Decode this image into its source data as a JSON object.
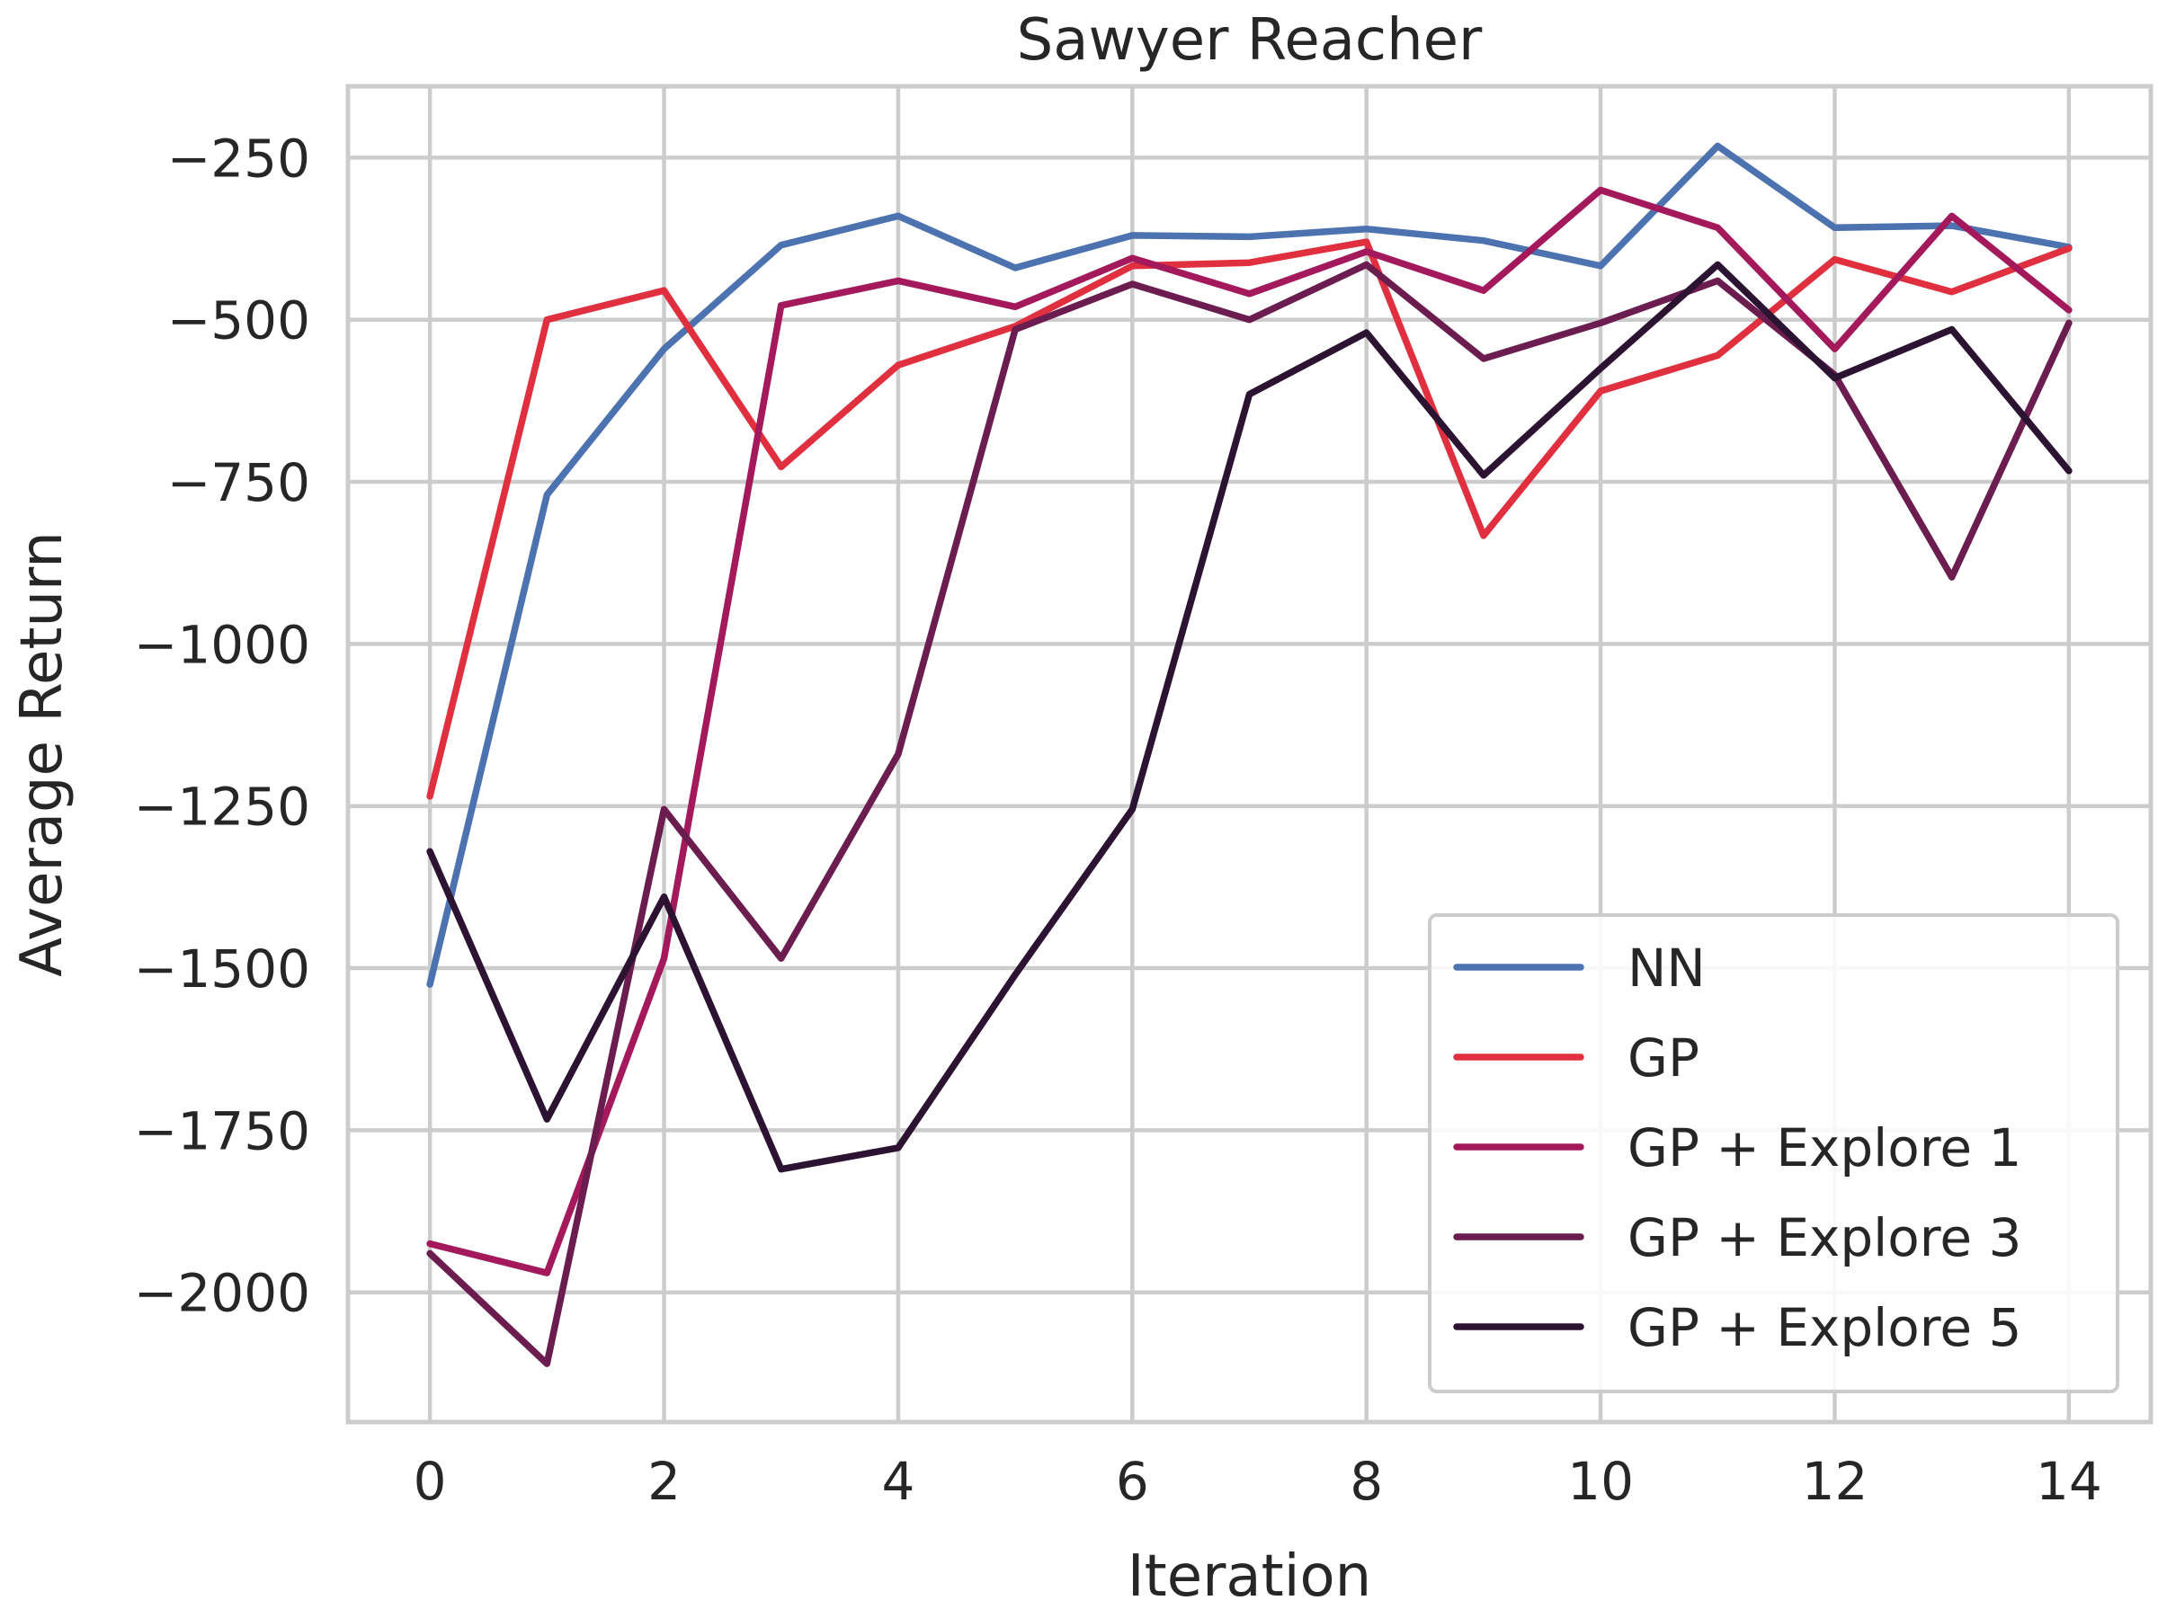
{
  "chart_data": {
    "type": "line",
    "title": "Sawyer Reacher",
    "xlabel": "Iteration",
    "ylabel": "Average Return",
    "xlim": [
      -0.7,
      14.7
    ],
    "ylim": [
      -2200,
      -140
    ],
    "xticks": [
      0,
      2,
      4,
      6,
      8,
      10,
      12,
      14
    ],
    "yticks": [
      -2000,
      -1750,
      -1500,
      -1250,
      -1000,
      -750,
      -500,
      -250
    ],
    "xtick_labels": [
      "0",
      "2",
      "4",
      "6",
      "8",
      "10",
      "12",
      "14"
    ],
    "ytick_labels": [
      "−2000",
      "−1750",
      "−1500",
      "−1250",
      "−1000",
      "−750",
      "−500",
      "−250"
    ],
    "grid": true,
    "legend_position": "lower-right",
    "x": [
      0,
      1,
      2,
      3,
      4,
      5,
      6,
      7,
      8,
      9,
      10,
      11,
      12,
      13,
      14
    ],
    "series": [
      {
        "name": "NN",
        "color": "#4C72B0",
        "values": [
          -1525,
          -770,
          -545,
          -385,
          -340,
          -420,
          -370,
          -372,
          -360,
          -378,
          -417,
          -232,
          -358,
          -355,
          -388
        ]
      },
      {
        "name": "GP",
        "color": "#E0303F",
        "values": [
          -1235,
          -500,
          -455,
          -727,
          -570,
          -510,
          -417,
          -412,
          -380,
          -833,
          -610,
          -555,
          -407,
          -457,
          -390
        ]
      },
      {
        "name": "GP + Explore 1",
        "color": "#A3195B",
        "values": [
          -1925,
          -1970,
          -1485,
          -478,
          -440,
          -480,
          -405,
          -460,
          -395,
          -455,
          -300,
          -358,
          -545,
          -340,
          -485
        ]
      },
      {
        "name": "GP + Explore 3",
        "color": "#6B1D4F",
        "values": [
          -1940,
          -2110,
          -1255,
          -1485,
          -1170,
          -515,
          -445,
          -500,
          -415,
          -560,
          -505,
          -440,
          -585,
          -897,
          -505
        ]
      },
      {
        "name": "GP + Explore 5",
        "color": "#2B1331",
        "values": [
          -1320,
          -1733,
          -1390,
          -1810,
          -1777,
          -1510,
          -1255,
          -615,
          -520,
          -740,
          -575,
          -415,
          -590,
          -515,
          -733
        ]
      }
    ]
  }
}
